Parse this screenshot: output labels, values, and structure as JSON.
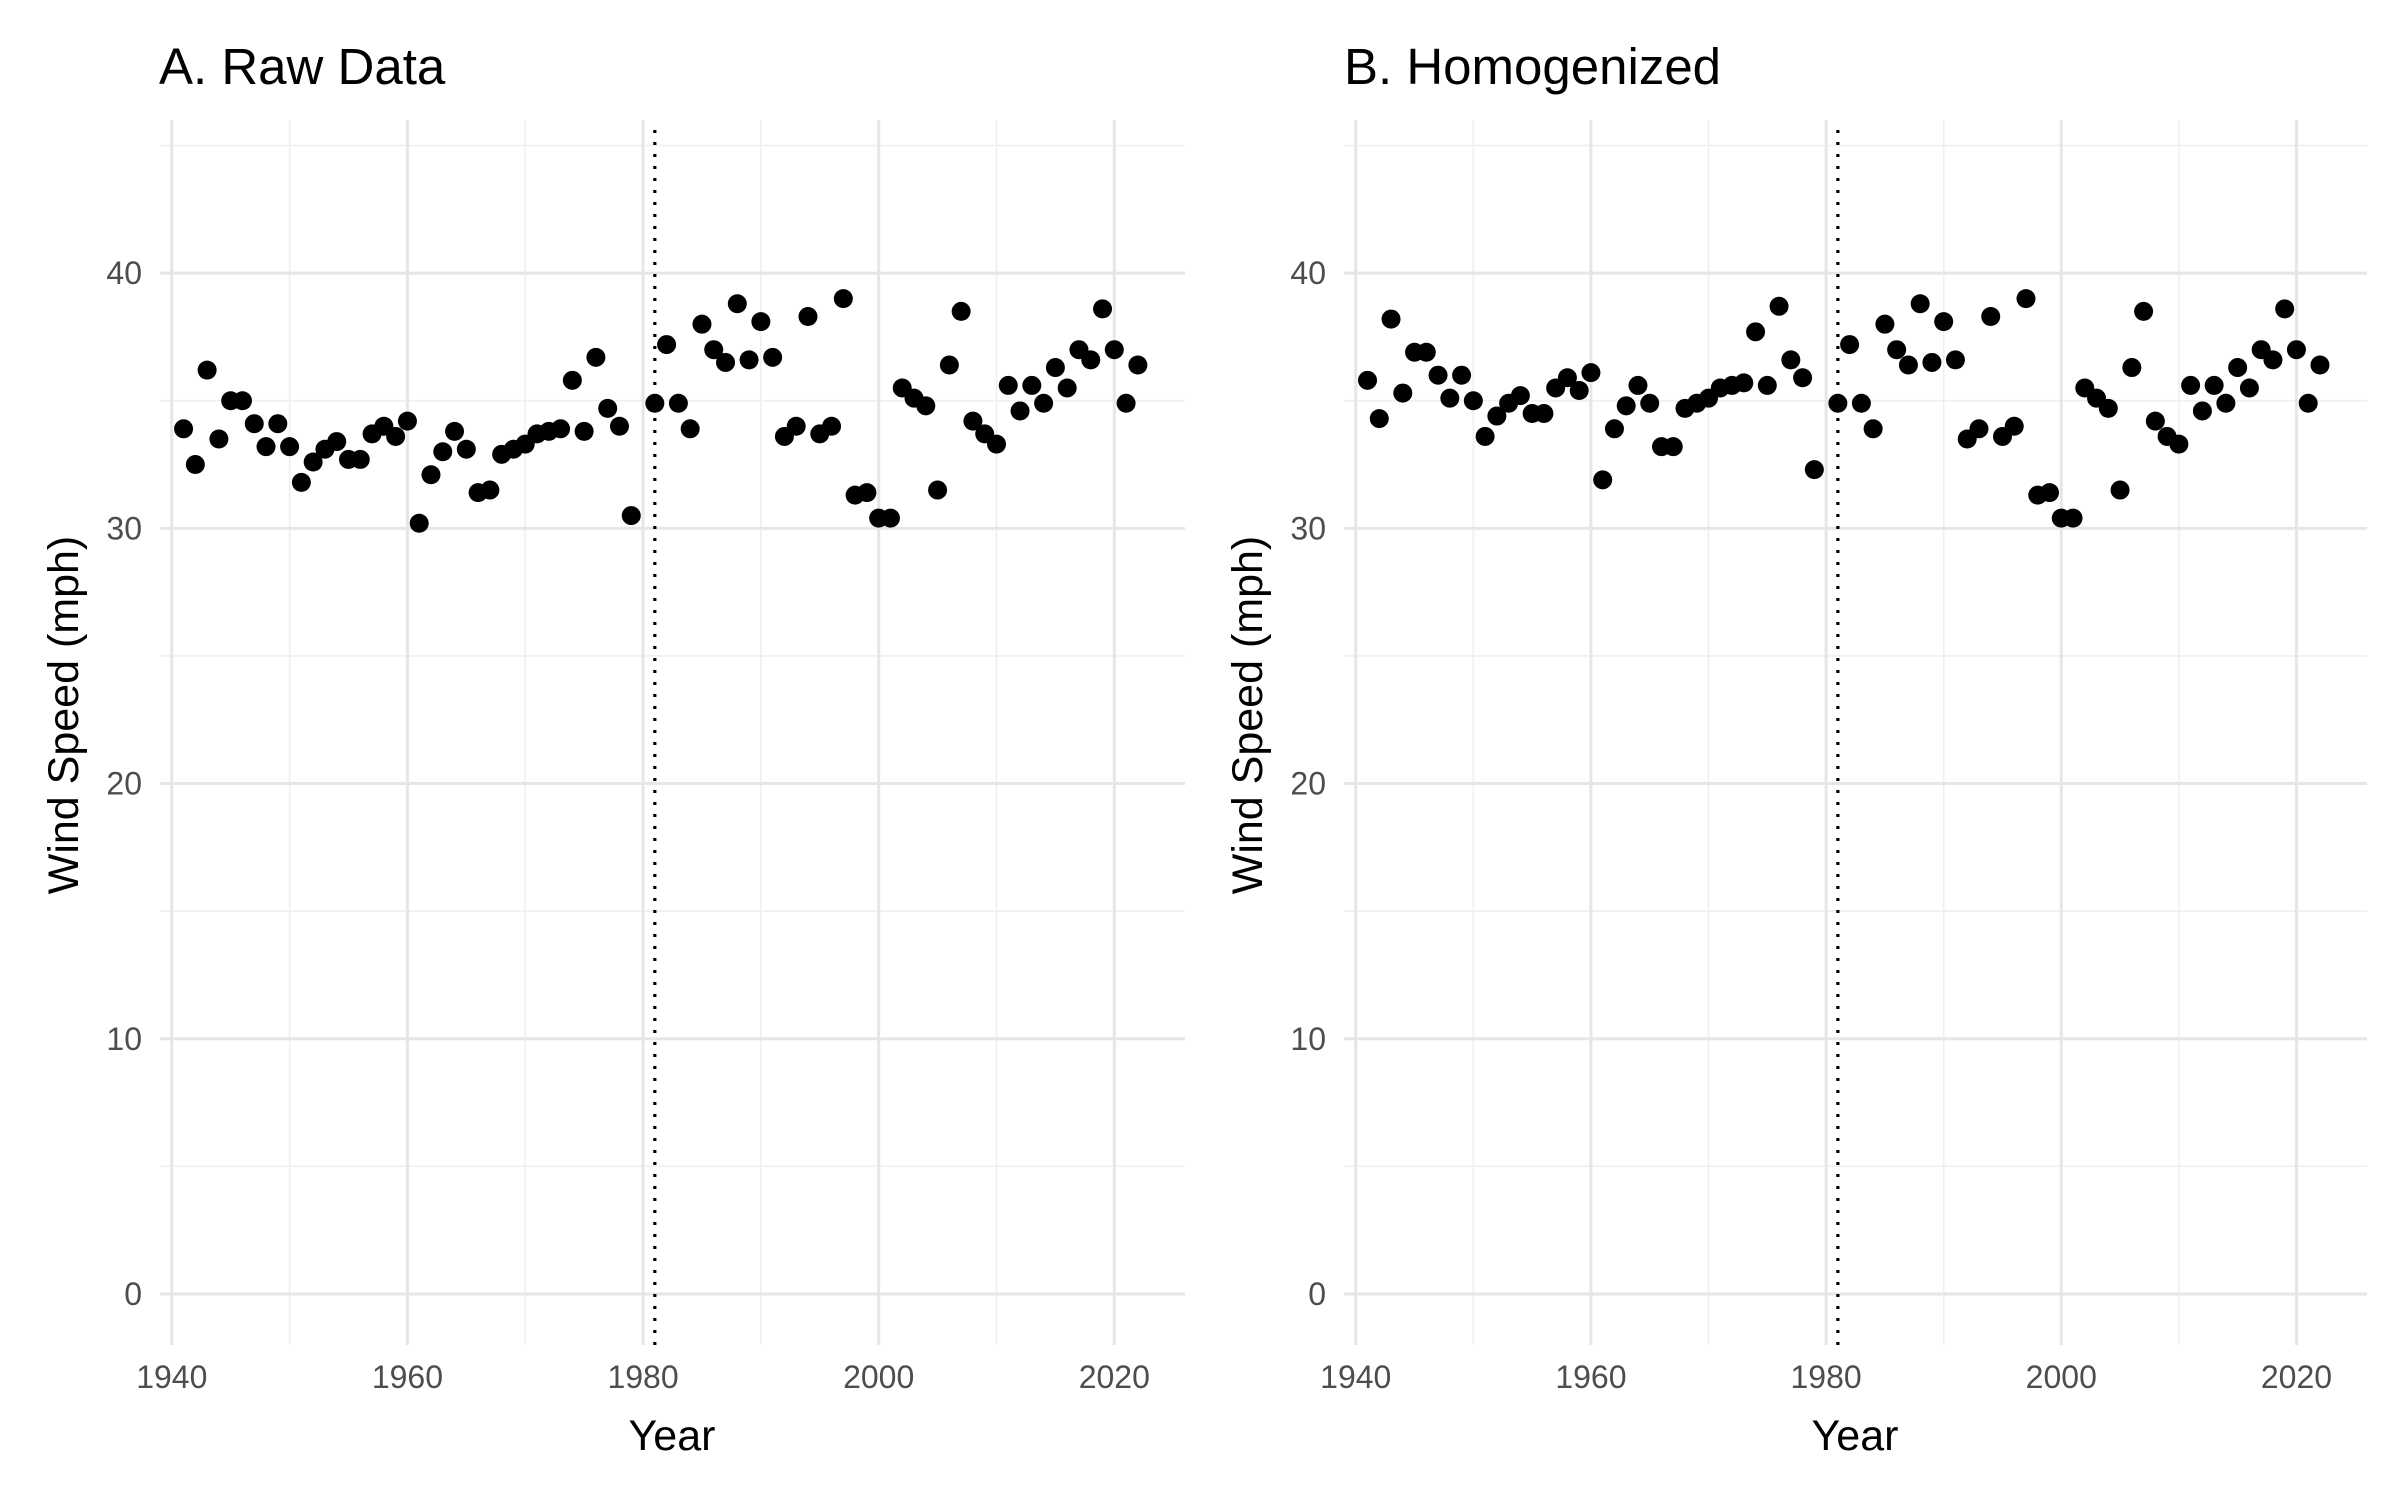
{
  "chart_data": [
    {
      "type": "scatter",
      "title": "A. Raw Data",
      "xlabel": "Year",
      "ylabel": "Wind Speed (mph)",
      "xlim": [
        1939,
        2026
      ],
      "ylim": [
        -2,
        46
      ],
      "x_ticks": [
        1940,
        1960,
        1980,
        2000,
        2020
      ],
      "y_ticks": [
        0,
        10,
        20,
        30,
        40
      ],
      "x_tick_labels": [
        "1940",
        "1960",
        "1980",
        "2000",
        "2020"
      ],
      "y_tick_labels": [
        "0",
        "10",
        "20",
        "30",
        "40"
      ],
      "vline_x": 1981,
      "grid": true,
      "x": [
        1941,
        1942,
        1943,
        1944,
        1945,
        1946,
        1947,
        1948,
        1949,
        1950,
        1951,
        1952,
        1953,
        1954,
        1955,
        1956,
        1957,
        1958,
        1959,
        1960,
        1961,
        1962,
        1963,
        1964,
        1965,
        1966,
        1967,
        1968,
        1969,
        1970,
        1971,
        1972,
        1973,
        1974,
        1975,
        1976,
        1977,
        1978,
        1979,
        1981,
        1982,
        1983,
        1984,
        1985,
        1986,
        1987,
        1988,
        1989,
        1990,
        1991,
        1992,
        1993,
        1994,
        1995,
        1996,
        1997,
        1998,
        1999,
        2000,
        2001,
        2002,
        2003,
        2004,
        2005,
        2006,
        2007,
        2008,
        2009,
        2010,
        2011,
        2012,
        2013,
        2014,
        2015,
        2016,
        2017,
        2018,
        2019,
        2020,
        2021,
        2022
      ],
      "y": [
        33.9,
        32.5,
        36.2,
        33.5,
        35.0,
        35.0,
        34.1,
        33.2,
        34.1,
        33.2,
        31.8,
        32.6,
        33.1,
        33.4,
        32.7,
        32.7,
        33.7,
        34.0,
        33.6,
        34.2,
        30.2,
        32.1,
        33.0,
        33.8,
        33.1,
        31.4,
        31.5,
        32.9,
        33.1,
        33.3,
        33.7,
        33.8,
        33.9,
        35.8,
        33.8,
        36.7,
        34.7,
        34.0,
        30.5,
        34.9,
        37.2,
        34.9,
        33.9,
        38.0,
        37.0,
        36.5,
        38.8,
        36.6,
        38.1,
        36.7,
        33.6,
        34.0,
        38.3,
        33.7,
        34.0,
        39.0,
        31.3,
        31.4,
        30.4,
        30.4,
        35.5,
        35.1,
        34.8,
        31.5,
        36.4,
        38.5,
        34.2,
        33.7,
        33.3,
        35.6,
        34.6,
        35.6,
        34.9,
        36.3,
        35.5,
        37.0,
        36.6,
        38.6,
        37.0,
        34.9,
        36.4
      ]
    },
    {
      "type": "scatter",
      "title": "B. Homogenized",
      "xlabel": "Year",
      "ylabel": "Wind Speed (mph)",
      "xlim": [
        1939,
        2026
      ],
      "ylim": [
        -2,
        46
      ],
      "x_ticks": [
        1940,
        1960,
        1980,
        2000,
        2020
      ],
      "y_ticks": [
        0,
        10,
        20,
        30,
        40
      ],
      "x_tick_labels": [
        "1940",
        "1960",
        "1980",
        "2000",
        "2020"
      ],
      "y_tick_labels": [
        "0",
        "10",
        "20",
        "30",
        "40"
      ],
      "vline_x": 1981,
      "grid": true,
      "x": [
        1941,
        1942,
        1943,
        1944,
        1945,
        1946,
        1947,
        1948,
        1949,
        1950,
        1951,
        1952,
        1953,
        1954,
        1955,
        1956,
        1957,
        1958,
        1959,
        1960,
        1961,
        1962,
        1963,
        1964,
        1965,
        1966,
        1967,
        1968,
        1969,
        1970,
        1971,
        1972,
        1973,
        1974,
        1975,
        1976,
        1977,
        1978,
        1979,
        1981,
        1982,
        1983,
        1984,
        1985,
        1986,
        1987,
        1988,
        1989,
        1990,
        1991,
        1992,
        1993,
        1994,
        1995,
        1996,
        1997,
        1998,
        1999,
        2000,
        2001,
        2002,
        2003,
        2004,
        2005,
        2006,
        2007,
        2008,
        2009,
        2010,
        2011,
        2012,
        2013,
        2014,
        2015,
        2016,
        2017,
        2018,
        2019,
        2020,
        2021,
        2022
      ],
      "y": [
        35.8,
        34.3,
        38.2,
        35.3,
        36.9,
        36.9,
        36.0,
        35.1,
        36.0,
        35.0,
        33.6,
        34.4,
        34.9,
        35.2,
        34.5,
        34.5,
        35.5,
        35.9,
        35.4,
        36.1,
        31.9,
        33.9,
        34.8,
        35.6,
        34.9,
        33.2,
        33.2,
        34.7,
        34.9,
        35.1,
        35.5,
        35.6,
        35.7,
        37.7,
        35.6,
        38.7,
        36.6,
        35.9,
        32.3,
        34.9,
        37.2,
        34.9,
        33.9,
        38.0,
        37.0,
        36.4,
        38.8,
        36.5,
        38.1,
        36.6,
        33.5,
        33.9,
        38.3,
        33.6,
        34.0,
        39.0,
        31.3,
        31.4,
        30.4,
        30.4,
        35.5,
        35.1,
        34.7,
        31.5,
        36.3,
        38.5,
        34.2,
        33.6,
        33.3,
        35.6,
        34.6,
        35.6,
        34.9,
        36.3,
        35.5,
        37.0,
        36.6,
        38.6,
        37.0,
        34.9,
        36.4
      ]
    }
  ]
}
